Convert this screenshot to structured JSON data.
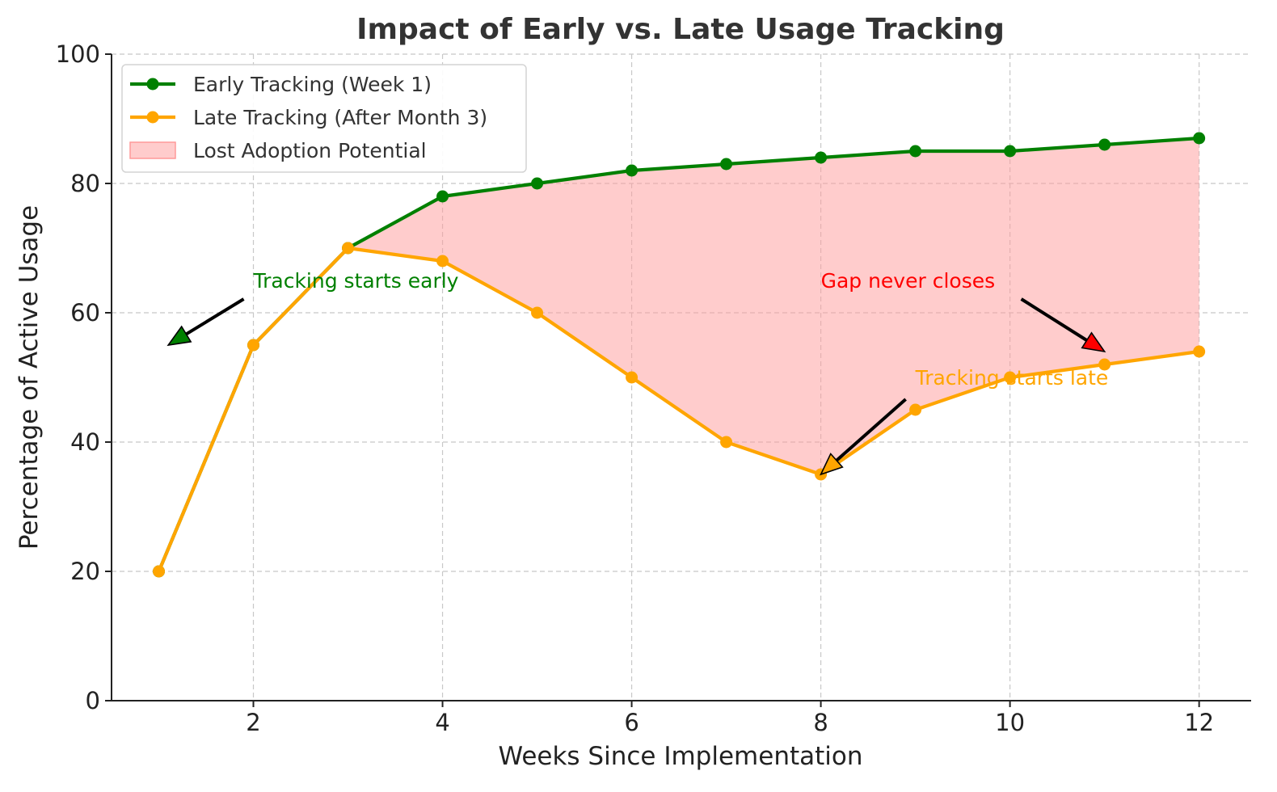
{
  "chart_data": {
    "type": "line",
    "title": "Impact of Early vs. Late Usage Tracking",
    "xlabel": "Weeks Since Implementation",
    "ylabel": "Percentage of Active Usage",
    "x": [
      1,
      2,
      3,
      4,
      5,
      6,
      7,
      8,
      9,
      10,
      11,
      12
    ],
    "xlim": [
      0.5,
      12.55
    ],
    "ylim": [
      0,
      100
    ],
    "x_ticks": [
      2,
      4,
      6,
      8,
      10,
      12
    ],
    "y_ticks": [
      0,
      20,
      40,
      60,
      80,
      100
    ],
    "x_tick_labels": [
      "2",
      "4",
      "6",
      "8",
      "10",
      "12"
    ],
    "y_tick_labels": [
      "0",
      "20",
      "40",
      "60",
      "80",
      "100"
    ],
    "grid": true,
    "legend_position": "top-left",
    "series": [
      {
        "name": "Early Tracking (Week 1)",
        "color": "#008000",
        "values": [
          20,
          55,
          70,
          78,
          80,
          82,
          83,
          84,
          85,
          85,
          86,
          87
        ]
      },
      {
        "name": "Late Tracking (After Month 3)",
        "color": "#FFA500",
        "values": [
          20,
          55,
          70,
          68,
          60,
          50,
          40,
          35,
          45,
          50,
          52,
          54
        ]
      }
    ],
    "fill_between": {
      "name": "Lost Adoption Potential",
      "color": "#FF9999",
      "opacity": 0.5,
      "x_start": 3,
      "x_end": 12
    },
    "annotations": [
      {
        "text": "Tracking starts early",
        "color": "#008000",
        "arrow_color": "#008000",
        "text_at": [
          2,
          65
        ],
        "point_at": [
          1.1,
          55
        ]
      },
      {
        "text": "Tracking starts late",
        "color": "#FFA500",
        "arrow_color": "#FFA500",
        "text_at": [
          9,
          50
        ],
        "point_at": [
          8,
          35
        ]
      },
      {
        "text": "Gap never closes",
        "color": "#FF0000",
        "arrow_color": "#FF0000",
        "text_at": [
          8,
          65
        ],
        "point_at": [
          11,
          54
        ]
      }
    ]
  }
}
